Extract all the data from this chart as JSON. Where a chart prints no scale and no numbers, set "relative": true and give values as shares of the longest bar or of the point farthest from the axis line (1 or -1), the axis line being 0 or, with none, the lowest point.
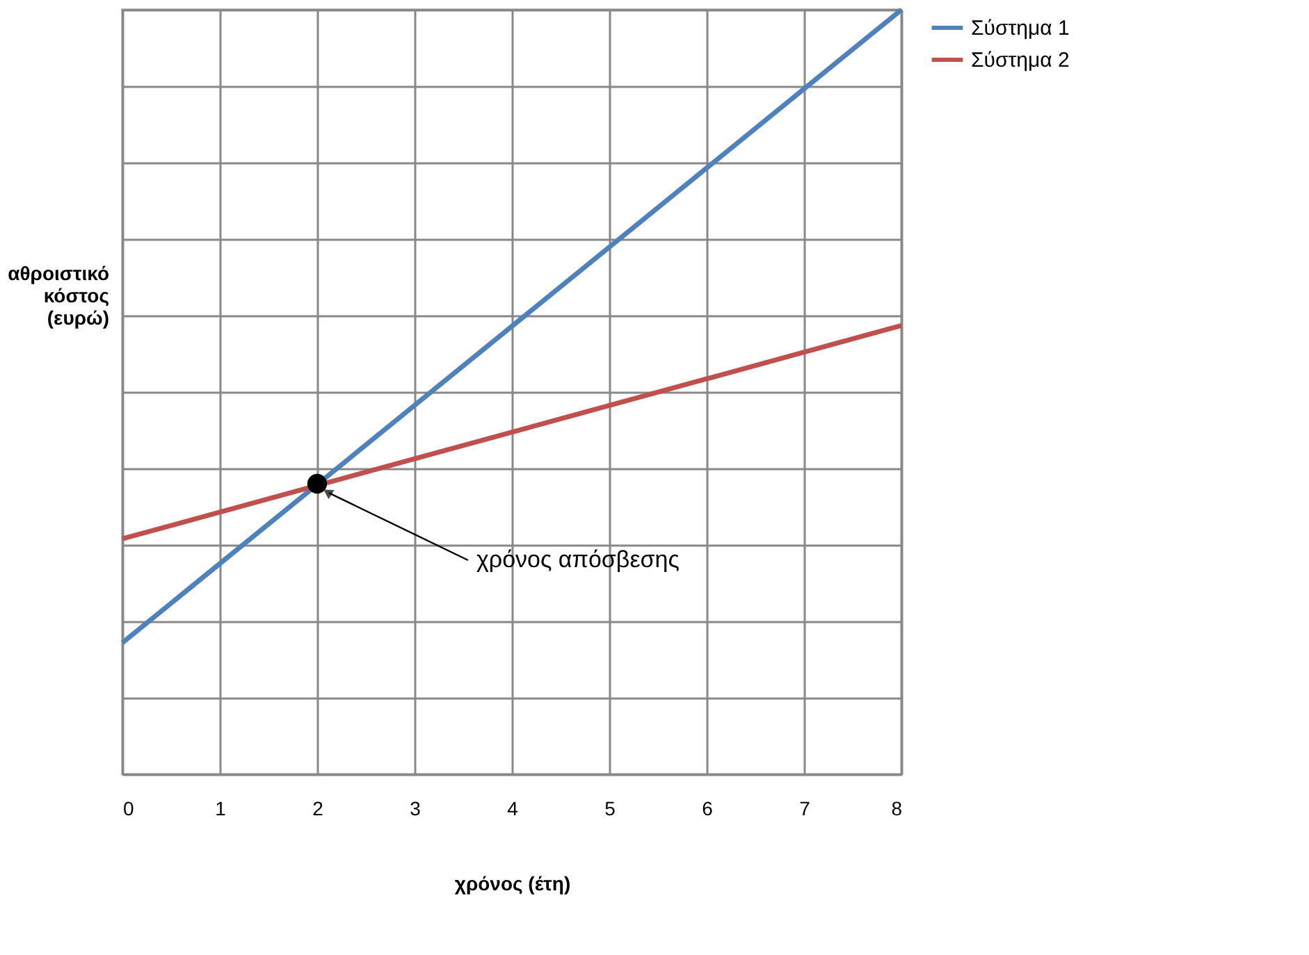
{
  "chart_data": {
    "type": "line",
    "xlabel": "χρόνος (έτη)",
    "ylabel": "αθροιστικό κόστος (ευρώ)",
    "relative": true,
    "x": [
      0,
      8
    ],
    "xlim": [
      0,
      8
    ],
    "xticks": [
      0,
      1,
      2,
      3,
      4,
      5,
      6,
      7,
      8
    ],
    "series": [
      {
        "name": "Σύστημα 1",
        "color": "#4f81bd",
        "values": [
          0.172,
          1
        ]
      },
      {
        "name": "Σύστημα 2",
        "color": "#c0504d",
        "values": [
          0.308,
          0.587
        ]
      },
      {
        "type": "scatter",
        "color": "#000000",
        "marker": "circle",
        "x": [
          2
        ],
        "values": [
          0.38
        ]
      }
    ],
    "annotations": [
      "χρόνος απόσβεσης"
    ],
    "grid": true,
    "legend": "right",
    "line_style": "solid"
  }
}
